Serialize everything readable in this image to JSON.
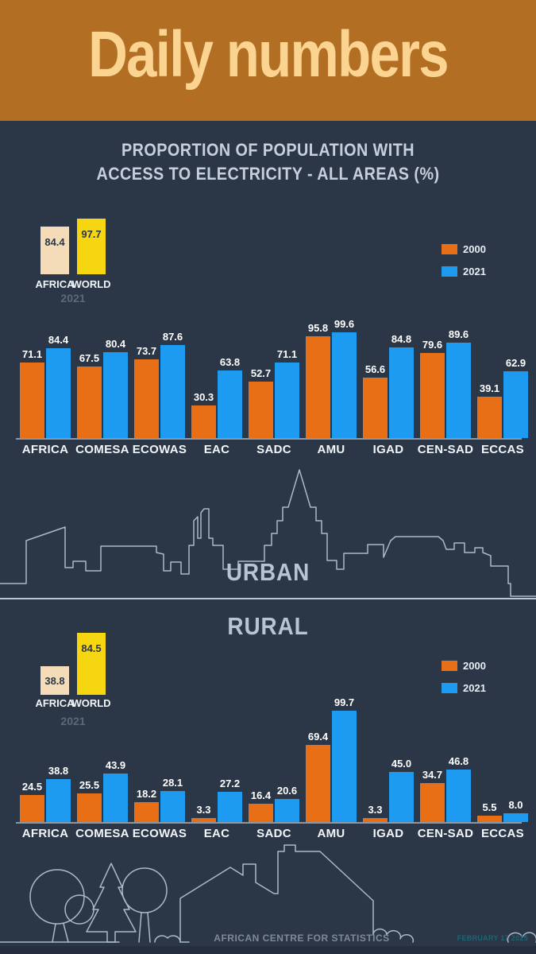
{
  "colors": {
    "header_bg": "#b26e22",
    "header_text": "#fbd492",
    "page_bg": "#2b3747",
    "bar_2000": "#e96f16",
    "bar_2021": "#1d9bf1",
    "africa_ref": "#f4dcb8",
    "world_ref": "#f5d611",
    "light_text": "#c6d0dc",
    "muted_text": "#5c6878",
    "silhouette_outline": "#a9bac9",
    "footer_text": "#7f8997",
    "date_text": "#1c6573"
  },
  "header": {
    "title": "Daily numbers"
  },
  "subtitle": {
    "line1": "PROPORTION OF POPULATION WITH",
    "line2": "ACCESS TO ELECTRICITY - ALL AREAS (%)"
  },
  "legend": {
    "items": [
      {
        "label": "2000",
        "color_key": "bar_2000"
      },
      {
        "label": "2021",
        "color_key": "bar_2021"
      }
    ]
  },
  "sections": {
    "urban": {
      "label": "URBAN",
      "reference": {
        "africa": {
          "label": "AFRICA",
          "value": 84.4
        },
        "world": {
          "label": "WORLD",
          "value": 97.7
        },
        "year": "2021"
      }
    },
    "rural": {
      "label": "RURAL",
      "reference": {
        "africa": {
          "label": "AFRICA",
          "value": 38.8
        },
        "world": {
          "label": "WORLD",
          "value": 84.5
        },
        "year": "2021"
      }
    }
  },
  "chart_data": [
    {
      "type": "bar",
      "title": "URBAN",
      "categories": [
        "AFRICA",
        "COMESA",
        "ECOWAS",
        "EAC",
        "SADC",
        "AMU",
        "IGAD",
        "CEN-SAD",
        "ECCAS"
      ],
      "series": [
        {
          "name": "2000",
          "values": [
            71.1,
            67.5,
            73.7,
            30.3,
            52.7,
            95.8,
            56.6,
            79.6,
            39.1
          ]
        },
        {
          "name": "2021",
          "values": [
            84.4,
            80.4,
            87.6,
            63.8,
            71.1,
            99.6,
            84.8,
            89.6,
            62.9
          ]
        }
      ],
      "ylim": [
        0,
        100
      ],
      "grid": false,
      "legend_position": "top-right",
      "value_labels": true
    },
    {
      "type": "bar",
      "title": "RURAL",
      "categories": [
        "AFRICA",
        "COMESA",
        "ECOWAS",
        "EAC",
        "SADC",
        "AMU",
        "IGAD",
        "CEN-SAD",
        "ECCAS"
      ],
      "series": [
        {
          "name": "2000",
          "values": [
            24.5,
            25.5,
            18.2,
            3.3,
            16.4,
            69.4,
            3.3,
            34.7,
            5.5
          ]
        },
        {
          "name": "2021",
          "values": [
            38.8,
            43.9,
            28.1,
            27.2,
            20.6,
            99.7,
            45.0,
            46.8,
            8.0
          ]
        }
      ],
      "ylim": [
        0,
        100
      ],
      "grid": false,
      "legend_position": "top-right",
      "value_labels": true
    }
  ],
  "footer": {
    "org": "AFRICAN CENTRE FOR STATISTICS",
    "date": "FEBRUARY 17 2025"
  }
}
